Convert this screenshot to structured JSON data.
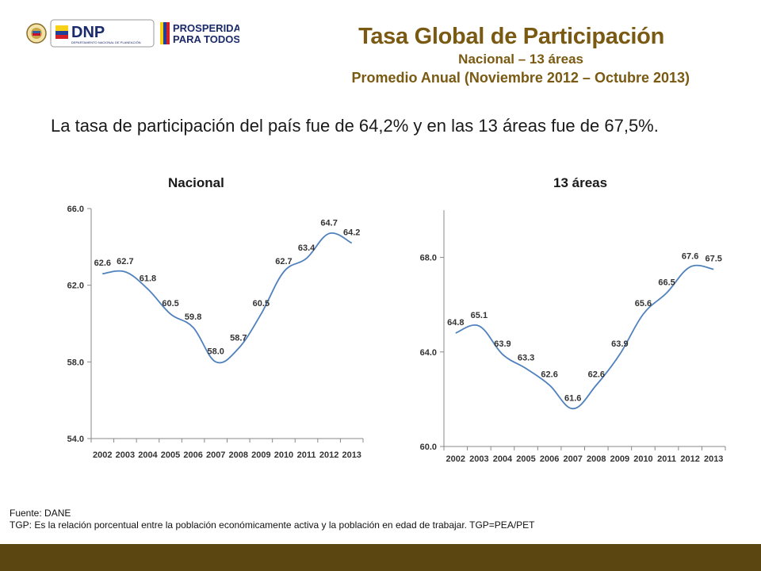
{
  "logos": {
    "dnp_text": "DNP",
    "dnp_subtext": "DEPARTAMENTO NACIONAL DE PLANEACIÓN",
    "prosperidad_line1": "PROSPERIDAD",
    "prosperidad_line2": "PARA TODOS"
  },
  "header": {
    "title": "Tasa Global de Participación",
    "subtitle1": "Nacional – 13 áreas",
    "subtitle2": "Promedio Anual (Noviembre 2012 – Octubre 2013)"
  },
  "lead_text": "La tasa de participación del país fue de 64,2% y en las 13 áreas fue de 67,5%.",
  "colors": {
    "accent": "#7a5a12",
    "bar": "#5b4612",
    "line": "#4f81bd"
  },
  "chart_data": [
    {
      "type": "line",
      "title": "Nacional",
      "categories": [
        "2002",
        "2003",
        "2004",
        "2005",
        "2006",
        "2007",
        "2008",
        "2009",
        "2010",
        "2011",
        "2012",
        "2013"
      ],
      "values": [
        62.6,
        62.7,
        61.8,
        60.5,
        59.8,
        58.0,
        58.7,
        60.5,
        62.7,
        63.4,
        64.7,
        64.2
      ],
      "data_labels": [
        "62.6",
        "62.7",
        "61.8",
        "60.5",
        "59.8",
        "58.0",
        "58.7",
        "60.5",
        "62.7",
        "63.4",
        "64.7",
        "64.2"
      ],
      "y_ticks": [
        "54.0",
        "58.0",
        "62.0",
        "66.0"
      ],
      "ylim": [
        54,
        66
      ],
      "grid": false,
      "legend": "none"
    },
    {
      "type": "line",
      "title": "13 áreas",
      "categories": [
        "2002",
        "2003",
        "2004",
        "2005",
        "2006",
        "2007",
        "2008",
        "2009",
        "2010",
        "2011",
        "2012",
        "2013"
      ],
      "values": [
        64.8,
        65.1,
        63.9,
        63.3,
        62.6,
        61.6,
        62.6,
        63.9,
        65.6,
        66.5,
        67.6,
        67.5
      ],
      "data_labels": [
        "64.8",
        "65.1",
        "63.9",
        "63.3",
        "62.6",
        "61.6",
        "62.6",
        "63.9",
        "65.6",
        "66.5",
        "67.6",
        "67.5"
      ],
      "y_ticks": [
        "60.0",
        "64.0",
        "68.0"
      ],
      "ylim": [
        60,
        70
      ],
      "grid": false,
      "legend": "none"
    }
  ],
  "footnote": {
    "source": "Fuente: DANE",
    "definition": "TGP: Es la relación porcentual entre la población económicamente activa y la población  en edad de trabajar. TGP=PEA/PET"
  }
}
